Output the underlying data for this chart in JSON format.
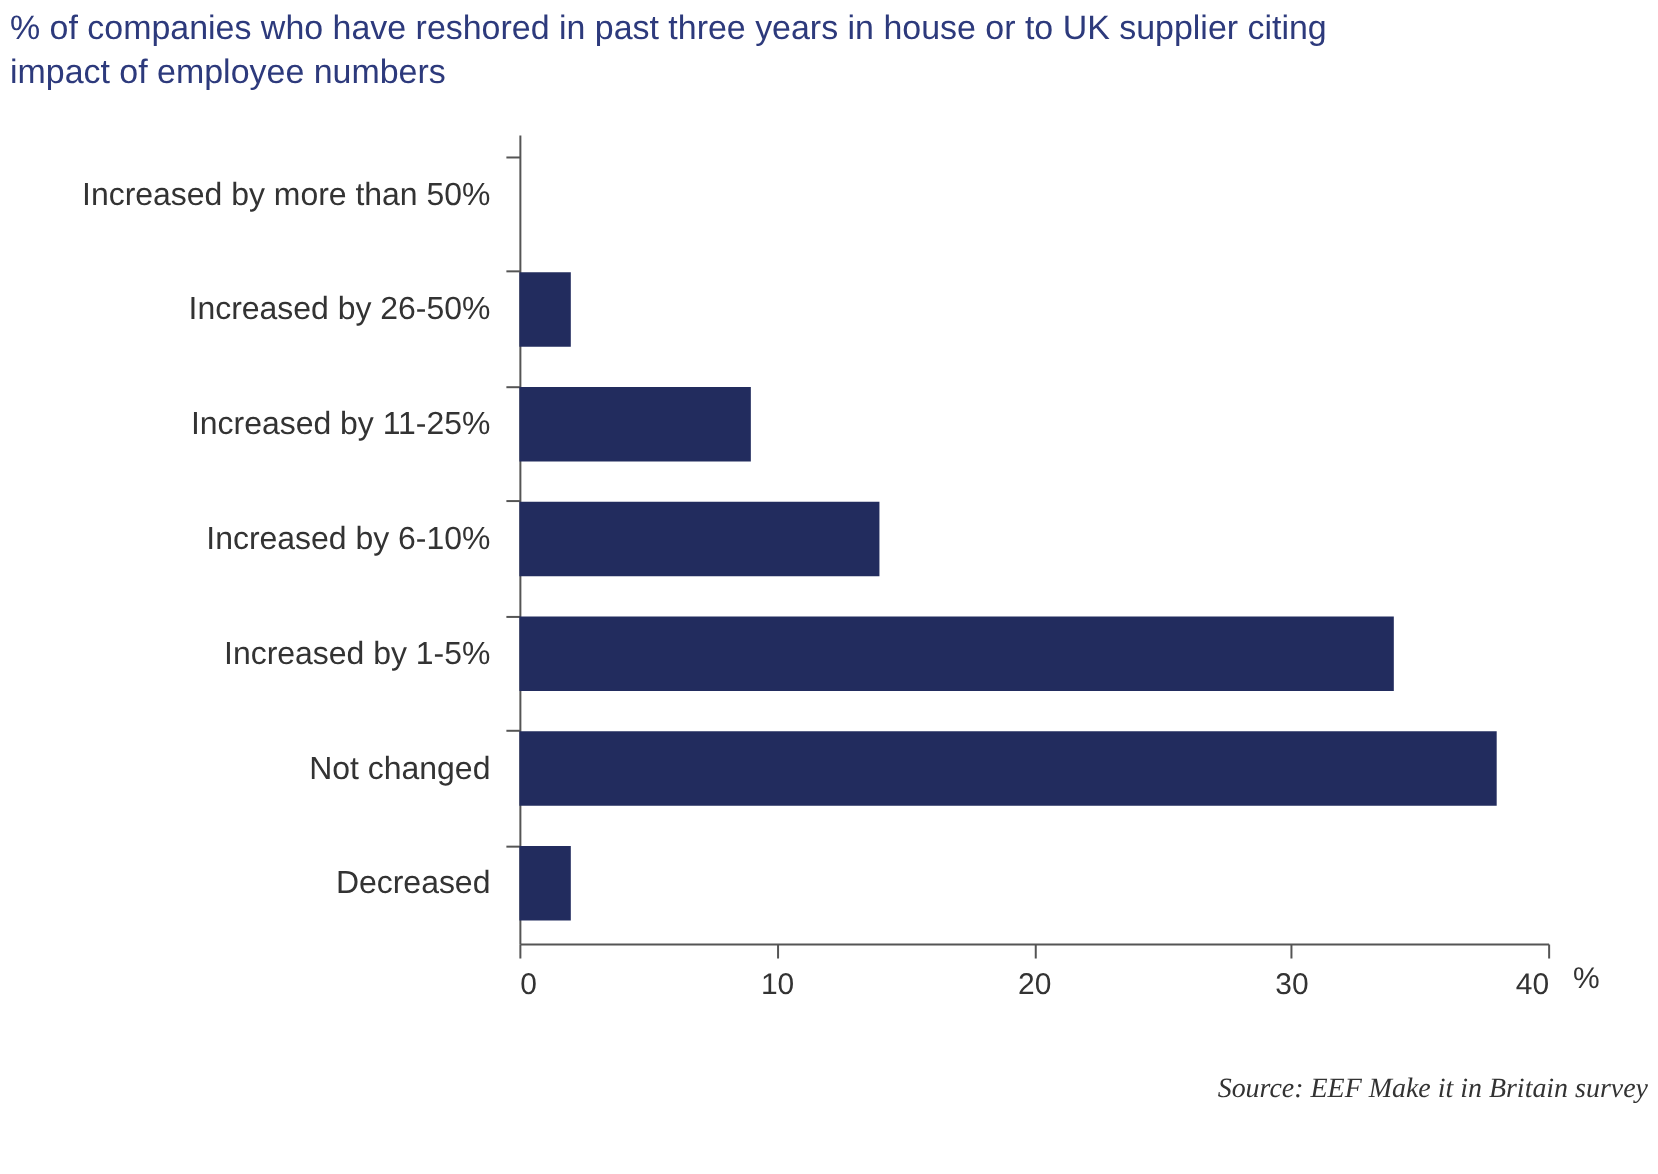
{
  "chart_data": {
    "type": "bar",
    "orientation": "horizontal",
    "title": "% of companies who have reshored in past three years in house or to UK supplier citing impact of employee numbers",
    "categories": [
      "Increased by more than 50%",
      "Increased by 26-50%",
      "Increased by 11-25%",
      "Increased by 6-10%",
      "Increased by 1-5%",
      "Not changed",
      "Decreased"
    ],
    "values": [
      0,
      2,
      9,
      14,
      34,
      38,
      2
    ],
    "color": "#222c5e",
    "xlabel": "%",
    "xlim": [
      0,
      40
    ],
    "xticks": [
      0,
      10,
      20,
      30,
      40
    ],
    "grid": false,
    "annotations": [
      "Source: EEF Make it in Britain survey"
    ]
  }
}
